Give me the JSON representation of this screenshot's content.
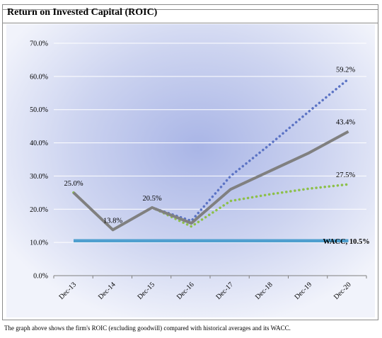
{
  "title": "Return on Invested Capital (ROIC)",
  "caption": "The graph above shows the firm's ROIC (excluding goodwill) compared with historical averages and its WACC.",
  "chart_data": {
    "type": "line",
    "categories": [
      "Dec-13",
      "Dec-14",
      "Dec-15",
      "Dec-16",
      "Dec-17",
      "Dec-18",
      "Dec-19",
      "Dec-20"
    ],
    "ylim": [
      0,
      70
    ],
    "yticks": [
      "0.0%",
      "10.0%",
      "20.0%",
      "30.0%",
      "40.0%",
      "50.0%",
      "60.0%",
      "70.0%"
    ],
    "series": [
      {
        "values": [
          25.0,
          13.8,
          20.5,
          16.5,
          30.0,
          39.5,
          49.5,
          59.2
        ],
        "color": "#5b73c4",
        "style": "dotted",
        "end_label": "59.2%"
      },
      {
        "values": [
          25.0,
          13.8,
          20.5,
          14.8,
          22.5,
          24.5,
          26.2,
          27.5
        ],
        "color": "#8dc04a",
        "style": "dotted",
        "end_label": "27.5%"
      },
      {
        "values": [
          25.0,
          13.8,
          20.5,
          15.8,
          26.0,
          31.5,
          37.0,
          43.4
        ],
        "color": "#808080",
        "style": "solid",
        "end_label": "43.4%"
      },
      {
        "values": [
          10.5,
          10.5,
          10.5,
          10.5,
          10.5,
          10.5,
          10.5,
          10.5
        ],
        "color": "#4f9fcf",
        "style": "solid",
        "end_label": "WACC, 10.5%"
      }
    ],
    "point_labels": [
      "25.0%",
      "13.8%",
      "20.5%"
    ],
    "grid": true
  }
}
